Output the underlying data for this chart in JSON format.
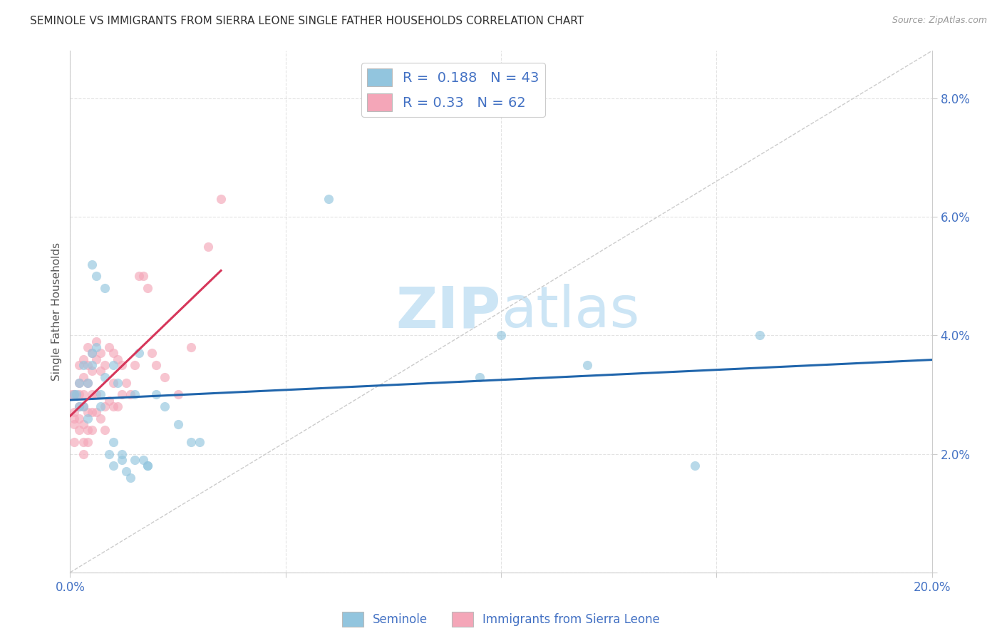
{
  "title": "SEMINOLE VS IMMIGRANTS FROM SIERRA LEONE SINGLE FATHER HOUSEHOLDS CORRELATION CHART",
  "source": "Source: ZipAtlas.com",
  "xlabel_seminole": "Seminole",
  "xlabel_sierra": "Immigrants from Sierra Leone",
  "ylabel": "Single Father Households",
  "xlim": [
    0.0,
    0.2
  ],
  "ylim": [
    0.0,
    0.088
  ],
  "xtick_positions": [
    0.0,
    0.05,
    0.1,
    0.15,
    0.2
  ],
  "xtick_labels": [
    "0.0%",
    "",
    "",
    "",
    "20.0%"
  ],
  "ytick_positions": [
    0.0,
    0.02,
    0.04,
    0.06,
    0.08
  ],
  "ytick_labels": [
    "",
    "2.0%",
    "4.0%",
    "6.0%",
    "8.0%"
  ],
  "blue_color": "#92c5de",
  "pink_color": "#f4a6b8",
  "blue_line_color": "#2166ac",
  "pink_line_color": "#d6365a",
  "ref_line_color": "#cccccc",
  "R_blue": 0.188,
  "N_blue": 43,
  "R_pink": 0.33,
  "N_pink": 62,
  "watermark_zip": "ZIP",
  "watermark_atlas": "atlas",
  "watermark_color": "#cce5f5",
  "watermark_fontsize_zip": 58,
  "watermark_fontsize_atlas": 58,
  "background_color": "#ffffff",
  "grid_color": "#dddddd",
  "seminole_x": [
    0.001,
    0.0015,
    0.002,
    0.002,
    0.003,
    0.003,
    0.004,
    0.004,
    0.005,
    0.005,
    0.006,
    0.007,
    0.007,
    0.008,
    0.009,
    0.01,
    0.01,
    0.011,
    0.012,
    0.013,
    0.014,
    0.015,
    0.016,
    0.017,
    0.018,
    0.02,
    0.022,
    0.025,
    0.028,
    0.03,
    0.005,
    0.006,
    0.008,
    0.01,
    0.012,
    0.015,
    0.018,
    0.06,
    0.095,
    0.1,
    0.12,
    0.145,
    0.16
  ],
  "seminole_y": [
    0.03,
    0.03,
    0.032,
    0.028,
    0.035,
    0.028,
    0.032,
    0.026,
    0.037,
    0.035,
    0.038,
    0.03,
    0.028,
    0.033,
    0.02,
    0.035,
    0.018,
    0.032,
    0.019,
    0.017,
    0.016,
    0.03,
    0.037,
    0.019,
    0.018,
    0.03,
    0.028,
    0.025,
    0.022,
    0.022,
    0.052,
    0.05,
    0.048,
    0.022,
    0.02,
    0.019,
    0.018,
    0.063,
    0.033,
    0.04,
    0.035,
    0.018,
    0.04
  ],
  "sierra_x": [
    0.0005,
    0.001,
    0.001,
    0.001,
    0.001,
    0.001,
    0.002,
    0.002,
    0.002,
    0.002,
    0.002,
    0.002,
    0.003,
    0.003,
    0.003,
    0.003,
    0.003,
    0.003,
    0.003,
    0.004,
    0.004,
    0.004,
    0.004,
    0.004,
    0.004,
    0.005,
    0.005,
    0.005,
    0.005,
    0.005,
    0.006,
    0.006,
    0.006,
    0.006,
    0.007,
    0.007,
    0.007,
    0.008,
    0.008,
    0.008,
    0.009,
    0.009,
    0.01,
    0.01,
    0.01,
    0.011,
    0.011,
    0.012,
    0.012,
    0.013,
    0.014,
    0.015,
    0.016,
    0.017,
    0.018,
    0.019,
    0.02,
    0.022,
    0.025,
    0.028,
    0.032,
    0.035
  ],
  "sierra_y": [
    0.03,
    0.027,
    0.025,
    0.022,
    0.03,
    0.026,
    0.035,
    0.032,
    0.028,
    0.024,
    0.03,
    0.026,
    0.036,
    0.033,
    0.03,
    0.028,
    0.025,
    0.022,
    0.02,
    0.038,
    0.035,
    0.032,
    0.027,
    0.024,
    0.022,
    0.037,
    0.034,
    0.03,
    0.027,
    0.024,
    0.039,
    0.036,
    0.03,
    0.027,
    0.037,
    0.034,
    0.026,
    0.035,
    0.028,
    0.024,
    0.038,
    0.029,
    0.037,
    0.032,
    0.028,
    0.036,
    0.028,
    0.035,
    0.03,
    0.032,
    0.03,
    0.035,
    0.05,
    0.05,
    0.048,
    0.037,
    0.035,
    0.033,
    0.03,
    0.038,
    0.055,
    0.063
  ]
}
